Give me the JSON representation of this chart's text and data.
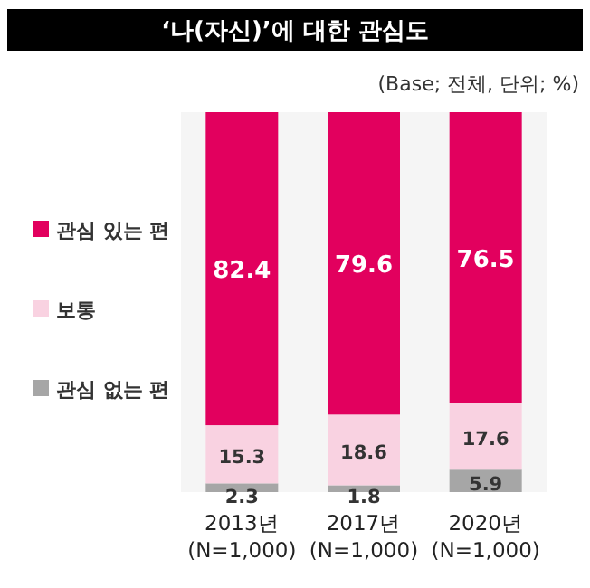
{
  "chart_data": {
    "type": "bar",
    "stacked": true,
    "data_labels": true,
    "legend": "left",
    "title": "‘나(자신)’에 대한 관심도",
    "subtitle": "(Base; 전체, 단위; %)",
    "categories": [
      "2013년\n(N=1,000)",
      "2017년\n(N=1,000)",
      "2020년\n(N=1,000)"
    ],
    "series": [
      {
        "name": "관심 없는 편",
        "color": "#a6a6a6",
        "values": [
          2.3,
          1.8,
          5.9
        ]
      },
      {
        "name": "보통",
        "color": "#f9d2e1",
        "values": [
          15.3,
          18.6,
          17.6
        ]
      },
      {
        "name": "관심 있는 편",
        "color": "#e2005e",
        "values": [
          82.4,
          79.6,
          76.5
        ]
      }
    ]
  }
}
